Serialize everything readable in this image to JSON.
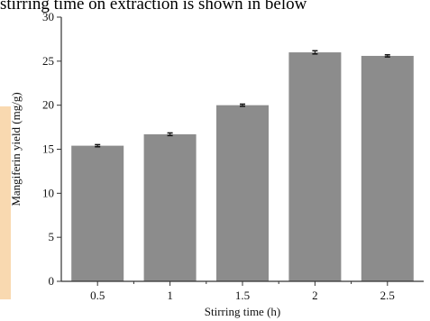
{
  "caption": "stirring time on extraction is shown in below",
  "colors": {
    "bar": "#8c8c8c",
    "axis": "#333333",
    "error_bar": "#111111",
    "accent_strip": "#f9d9b0"
  },
  "chart_data": {
    "type": "bar",
    "title": "",
    "xlabel": "Stirring time (h)",
    "ylabel": "Mangiferin yield (mg/g)",
    "categories": [
      "0.5",
      "1",
      "1.5",
      "2",
      "2.5"
    ],
    "values": [
      15.4,
      16.7,
      20.0,
      26.0,
      25.6
    ],
    "errors": [
      0.12,
      0.15,
      0.12,
      0.18,
      0.12
    ],
    "ylim": [
      0,
      30
    ],
    "yticks": [
      "0",
      "5",
      "10",
      "15",
      "20",
      "25",
      "30"
    ],
    "grid": false,
    "legend": "none"
  }
}
